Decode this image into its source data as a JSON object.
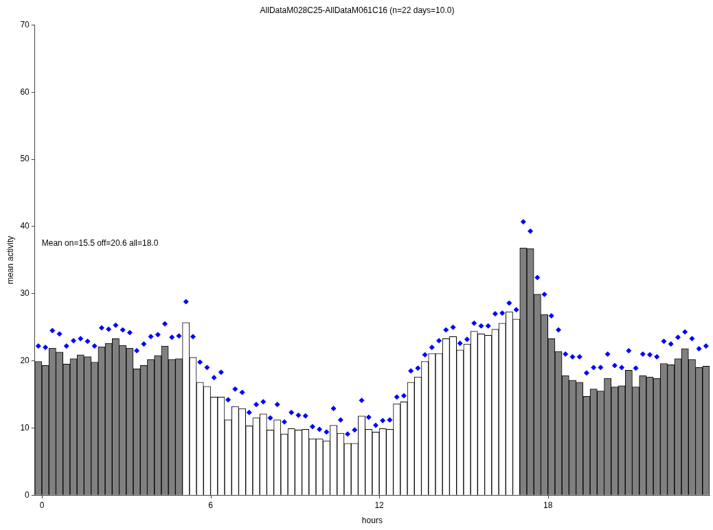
{
  "chart_data": {
    "type": "bar",
    "title": "AllDataM028C25-AllDataM061C16 (n=22 days=10.0)",
    "xlabel": "hours",
    "ylabel": "mean activity",
    "annotations": [
      "Mean on=15.5 off=20.6 all=18.0"
    ],
    "x": [
      -0.125,
      0.125,
      0.375,
      0.625,
      0.875,
      1.125,
      1.375,
      1.625,
      1.875,
      2.125,
      2.375,
      2.625,
      2.875,
      3.125,
      3.375,
      3.625,
      3.875,
      4.125,
      4.375,
      4.625,
      4.875,
      5.125,
      5.375,
      5.625,
      5.875,
      6.125,
      6.375,
      6.625,
      6.875,
      7.125,
      7.375,
      7.625,
      7.875,
      8.125,
      8.375,
      8.625,
      8.875,
      9.125,
      9.375,
      9.625,
      9.875,
      10.125,
      10.375,
      10.625,
      10.875,
      11.125,
      11.375,
      11.625,
      11.875,
      12.125,
      12.375,
      12.625,
      12.875,
      13.125,
      13.375,
      13.625,
      13.875,
      14.125,
      14.375,
      14.625,
      14.875,
      15.125,
      15.375,
      15.625,
      15.875,
      16.125,
      16.375,
      16.625,
      16.875,
      17.125,
      17.375,
      17.625,
      17.875,
      18.125,
      18.375,
      18.625,
      18.875,
      19.125,
      19.375,
      19.625,
      19.875,
      20.125,
      20.375,
      20.625,
      20.875,
      21.125,
      21.375,
      21.625,
      21.875,
      22.125,
      22.375,
      22.625,
      22.875,
      23.125,
      23.375,
      23.625
    ],
    "xlim": [
      -0.25,
      23.75
    ],
    "xticks": [
      0,
      6,
      12,
      18
    ],
    "ylim": [
      0,
      70
    ],
    "yticks": [
      0,
      10,
      20,
      30,
      40,
      50,
      60,
      70
    ],
    "grid": false,
    "legend": false,
    "marker": "diamond",
    "series": [
      {
        "colors": [
          "#808080",
          "#808080",
          "#808080",
          "#808080",
          "#808080",
          "#808080",
          "#808080",
          "#808080",
          "#808080",
          "#808080",
          "#808080",
          "#808080",
          "#808080",
          "#808080",
          "#808080",
          "#808080",
          "#808080",
          "#808080",
          "#808080",
          "#808080",
          "#808080",
          "#ffffff",
          "#ffffff",
          "#ffffff",
          "#ffffff",
          "#ffffff",
          "#ffffff",
          "#ffffff",
          "#ffffff",
          "#ffffff",
          "#ffffff",
          "#ffffff",
          "#ffffff",
          "#ffffff",
          "#ffffff",
          "#ffffff",
          "#ffffff",
          "#ffffff",
          "#ffffff",
          "#ffffff",
          "#ffffff",
          "#ffffff",
          "#ffffff",
          "#ffffff",
          "#ffffff",
          "#ffffff",
          "#ffffff",
          "#ffffff",
          "#ffffff",
          "#ffffff",
          "#ffffff",
          "#ffffff",
          "#ffffff",
          "#ffffff",
          "#ffffff",
          "#ffffff",
          "#ffffff",
          "#ffffff",
          "#ffffff",
          "#ffffff",
          "#ffffff",
          "#ffffff",
          "#ffffff",
          "#ffffff",
          "#ffffff",
          "#ffffff",
          "#ffffff",
          "#ffffff",
          "#ffffff",
          "#808080",
          "#808080",
          "#808080",
          "#808080",
          "#808080",
          "#808080",
          "#808080",
          "#808080",
          "#808080",
          "#808080",
          "#808080",
          "#808080",
          "#808080",
          "#808080",
          "#808080",
          "#808080",
          "#808080",
          "#808080",
          "#808080",
          "#808080",
          "#808080",
          "#808080",
          "#808080",
          "#808080",
          "#808080",
          "#808080",
          "#808080"
        ],
        "values": [
          19.9,
          19.3,
          21.9,
          21.3,
          19.5,
          20.3,
          20.9,
          20.6,
          19.8,
          22.1,
          22.6,
          23.3,
          22.3,
          21.9,
          18.8,
          19.3,
          20.2,
          20.8,
          22.2,
          20.2,
          20.3,
          25.7,
          20.5,
          16.8,
          16.2,
          14.6,
          14.6,
          11.2,
          13.2,
          12.9,
          10.3,
          11.5,
          12.1,
          9.7,
          11.2,
          9.1,
          9.9,
          9.7,
          9.8,
          8.4,
          8.4,
          8.1,
          10.4,
          9.2,
          7.7,
          7.7,
          11.8,
          9.8,
          9.4,
          9.9,
          9.8,
          13.6,
          13.9,
          16.8,
          17.6,
          19.9,
          21.1,
          21.1,
          23.3,
          23.6,
          21.6,
          22.5,
          24.4,
          24.0,
          23.8,
          24.7,
          25.6,
          27.3,
          26.2,
          36.8,
          36.7,
          29.9,
          26.9,
          23.3,
          21.4,
          17.8,
          17.1,
          16.8,
          14.7,
          15.8,
          15.5,
          17.4,
          16.1,
          16.3,
          18.6,
          16.1,
          17.8,
          17.6,
          17.4,
          19.6,
          19.4,
          20.3,
          21.8,
          20.2,
          19.0,
          19.2
        ]
      },
      {
        "type": "scatter",
        "color": "#0000ff",
        "values": [
          22.2,
          22.0,
          24.5,
          24.0,
          22.2,
          23.0,
          23.3,
          22.9,
          22.2,
          24.9,
          24.7,
          25.3,
          24.6,
          24.2,
          21.5,
          22.5,
          23.6,
          23.9,
          25.5,
          23.5,
          23.7,
          28.8,
          23.6,
          19.8,
          19.0,
          17.5,
          18.3,
          14.2,
          15.8,
          15.3,
          12.3,
          13.5,
          13.9,
          11.5,
          13.5,
          10.9,
          12.3,
          11.9,
          11.8,
          10.2,
          9.8,
          9.4,
          12.9,
          11.2,
          9.1,
          9.7,
          14.1,
          11.6,
          10.4,
          11.1,
          11.2,
          14.6,
          14.8,
          18.5,
          18.9,
          20.9,
          22.0,
          23.0,
          24.6,
          25.0,
          22.6,
          23.2,
          25.6,
          25.2,
          25.2,
          27.0,
          27.1,
          28.6,
          27.6,
          40.7,
          39.3,
          32.4,
          29.9,
          26.7,
          24.6,
          21.0,
          20.6,
          20.6,
          18.2,
          19.0,
          19.0,
          21.0,
          19.3,
          19.0,
          21.5,
          18.9,
          21.0,
          20.9,
          20.6,
          22.9,
          22.5,
          23.5,
          24.3,
          23.3,
          21.8,
          22.2
        ]
      }
    ]
  }
}
